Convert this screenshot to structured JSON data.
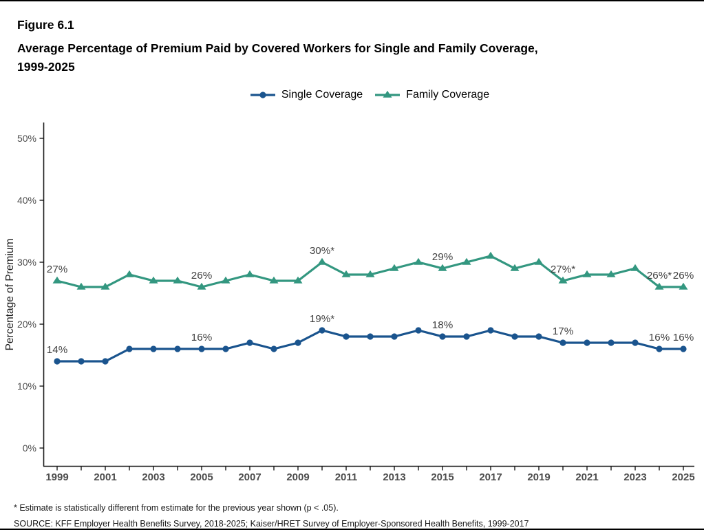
{
  "header": {
    "figure_number": "Figure 6.1",
    "title_line1": "Average Percentage of Premium Paid by Covered Workers for Single and Family Coverage,",
    "title_line2": "1999-2025"
  },
  "legend": {
    "items": [
      {
        "key": "single",
        "label": "Single Coverage",
        "marker": "circle-icon"
      },
      {
        "key": "family",
        "label": "Family Coverage",
        "marker": "triangle-icon"
      }
    ]
  },
  "colors": {
    "single": "#1a548e",
    "family": "#339780",
    "point_label": "#404040",
    "axis_text": "#4d4d4d",
    "axis_line": "#1a1a1a",
    "title_text": "#000000"
  },
  "chart_data": {
    "type": "line",
    "title": "Average Percentage of Premium Paid by Covered Workers for Single and Family Coverage, 1999-2025",
    "ylabel": "Percentage of Premium",
    "ylim": [
      0,
      50
    ],
    "yticks": [
      0,
      10,
      20,
      30,
      40,
      50
    ],
    "ytick_labels": [
      "0%",
      "10%",
      "20%",
      "30%",
      "40%",
      "50%"
    ],
    "x": [
      1999,
      2000,
      2001,
      2002,
      2003,
      2004,
      2005,
      2006,
      2007,
      2008,
      2009,
      2010,
      2011,
      2012,
      2013,
      2014,
      2015,
      2016,
      2017,
      2018,
      2019,
      2020,
      2021,
      2022,
      2023,
      2024,
      2025
    ],
    "xtick_labeled": [
      1999,
      2001,
      2003,
      2005,
      2007,
      2009,
      2011,
      2013,
      2015,
      2017,
      2019,
      2021,
      2023,
      2025
    ],
    "grid": false,
    "legend_position": "top",
    "series": [
      {
        "name": "Single Coverage",
        "key": "single",
        "marker": "circle",
        "color": "#1a548e",
        "values": [
          14,
          14,
          14,
          16,
          16,
          16,
          16,
          16,
          17,
          16,
          17,
          19,
          18,
          18,
          18,
          19,
          18,
          18,
          19,
          18,
          18,
          17,
          17,
          17,
          17,
          16,
          16
        ]
      },
      {
        "name": "Family Coverage",
        "key": "family",
        "marker": "triangle",
        "color": "#339780",
        "values": [
          27,
          26,
          26,
          28,
          27,
          27,
          26,
          27,
          28,
          27,
          27,
          30,
          28,
          28,
          29,
          30,
          29,
          30,
          31,
          29,
          30,
          27,
          28,
          28,
          29,
          26,
          26
        ]
      }
    ],
    "point_labels": [
      {
        "series": "single",
        "year": 1999,
        "text": "14%"
      },
      {
        "series": "single",
        "year": 2005,
        "text": "16%"
      },
      {
        "series": "single",
        "year": 2010,
        "text": "19%*"
      },
      {
        "series": "single",
        "year": 2015,
        "text": "18%"
      },
      {
        "series": "single",
        "year": 2020,
        "text": "17%"
      },
      {
        "series": "single",
        "year": 2024,
        "text": "16%"
      },
      {
        "series": "single",
        "year": 2025,
        "text": "16%"
      },
      {
        "series": "family",
        "year": 1999,
        "text": "27%"
      },
      {
        "series": "family",
        "year": 2005,
        "text": "26%"
      },
      {
        "series": "family",
        "year": 2010,
        "text": "30%*"
      },
      {
        "series": "family",
        "year": 2015,
        "text": "29%"
      },
      {
        "series": "family",
        "year": 2020,
        "text": "27%*"
      },
      {
        "series": "family",
        "year": 2024,
        "text": "26%*"
      },
      {
        "series": "family",
        "year": 2025,
        "text": "26%"
      }
    ]
  },
  "footnotes": {
    "significance": "* Estimate is statistically different from estimate for the previous year shown (p < .05).",
    "source": "SOURCE: KFF Employer Health Benefits Survey, 2018-2025; Kaiser/HRET Survey of Employer-Sponsored Health Benefits, 1999-2017"
  }
}
